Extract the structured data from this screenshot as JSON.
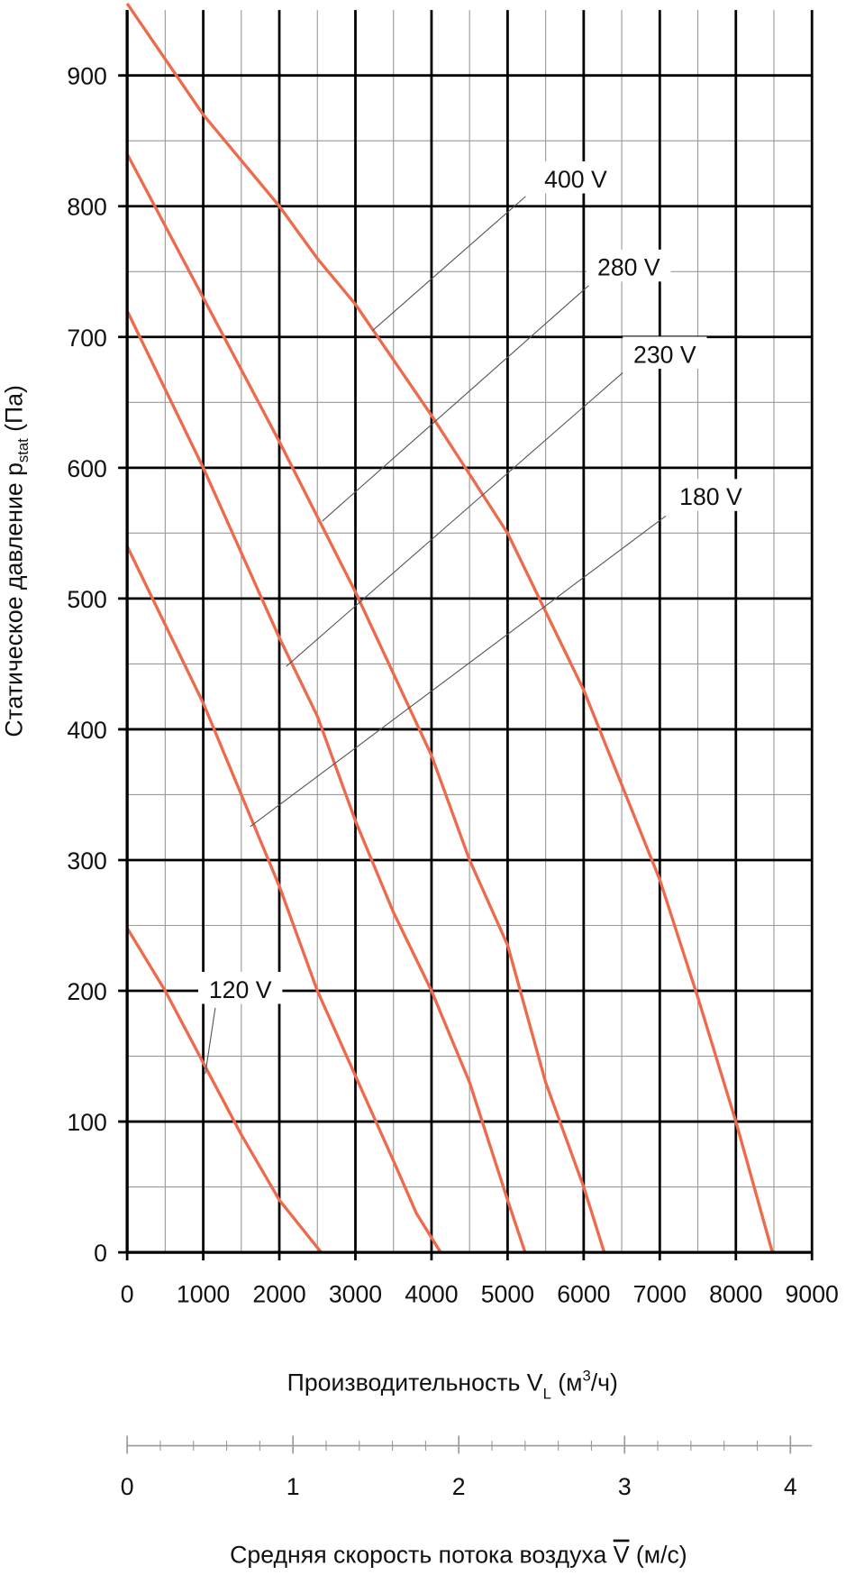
{
  "chart_data": {
    "type": "line",
    "xlim": [
      0,
      9000
    ],
    "xticks": [
      0,
      1000,
      2000,
      3000,
      4000,
      5000,
      6000,
      7000,
      8000,
      9000
    ],
    "xminor": [
      500,
      1500,
      2500,
      3500,
      4500,
      5500,
      6500,
      7500,
      8500
    ],
    "ylim": [
      0,
      950
    ],
    "yticks": [
      0,
      100,
      200,
      300,
      400,
      500,
      600,
      700,
      800,
      900
    ],
    "yminor": [
      50,
      150,
      250,
      350,
      450,
      550,
      650,
      750,
      850
    ],
    "grid": true,
    "ylabel": [
      "Статическое давление p",
      "stat",
      " (Па)"
    ],
    "xlabel": [
      "Производительность V",
      "L",
      " (м",
      "3",
      "/ч)"
    ],
    "x2lim": [
      0,
      4.13
    ],
    "x2ticks": [
      0,
      1,
      2,
      3,
      4
    ],
    "x2minor": [
      0.2,
      0.4,
      0.6,
      0.8,
      1.2,
      1.4,
      1.6,
      1.8,
      2.2,
      2.4,
      2.6,
      2.8,
      3.2,
      3.4,
      3.6,
      3.8
    ],
    "x2label": [
      "Средняя скорость потока воздуха ",
      "V",
      " (м/с)"
    ],
    "series": [
      {
        "name": "120 V",
        "color": "#ee6a4c",
        "x": [
          0,
          500,
          1000,
          1500,
          2000,
          2550
        ],
        "values": [
          248,
          200,
          145,
          90,
          40,
          0
        ]
      },
      {
        "name": "180 V",
        "color": "#ee6a4c",
        "x": [
          0,
          1000,
          2000,
          2500,
          3000,
          3500,
          3800,
          4120
        ],
        "values": [
          540,
          420,
          280,
          200,
          135,
          70,
          30,
          0
        ]
      },
      {
        "name": "230 V",
        "color": "#ee6a4c",
        "x": [
          0,
          1000,
          2000,
          2500,
          3000,
          3500,
          4000,
          4500,
          5000,
          5230
        ],
        "values": [
          720,
          600,
          470,
          410,
          330,
          260,
          200,
          130,
          40,
          0
        ]
      },
      {
        "name": "280 V",
        "color": "#ee6a4c",
        "x": [
          0,
          1000,
          2000,
          3000,
          4000,
          4500,
          5000,
          5500,
          6000,
          6270
        ],
        "values": [
          840,
          730,
          620,
          505,
          380,
          300,
          235,
          130,
          50,
          0
        ]
      },
      {
        "name": "400 V",
        "color": "#ee6a4c",
        "x": [
          0,
          1000,
          2000,
          2500,
          3000,
          4000,
          5000,
          6000,
          7000,
          7500,
          8000,
          8480
        ],
        "values": [
          955,
          870,
          800,
          760,
          725,
          640,
          550,
          430,
          285,
          195,
          100,
          0
        ]
      }
    ]
  }
}
